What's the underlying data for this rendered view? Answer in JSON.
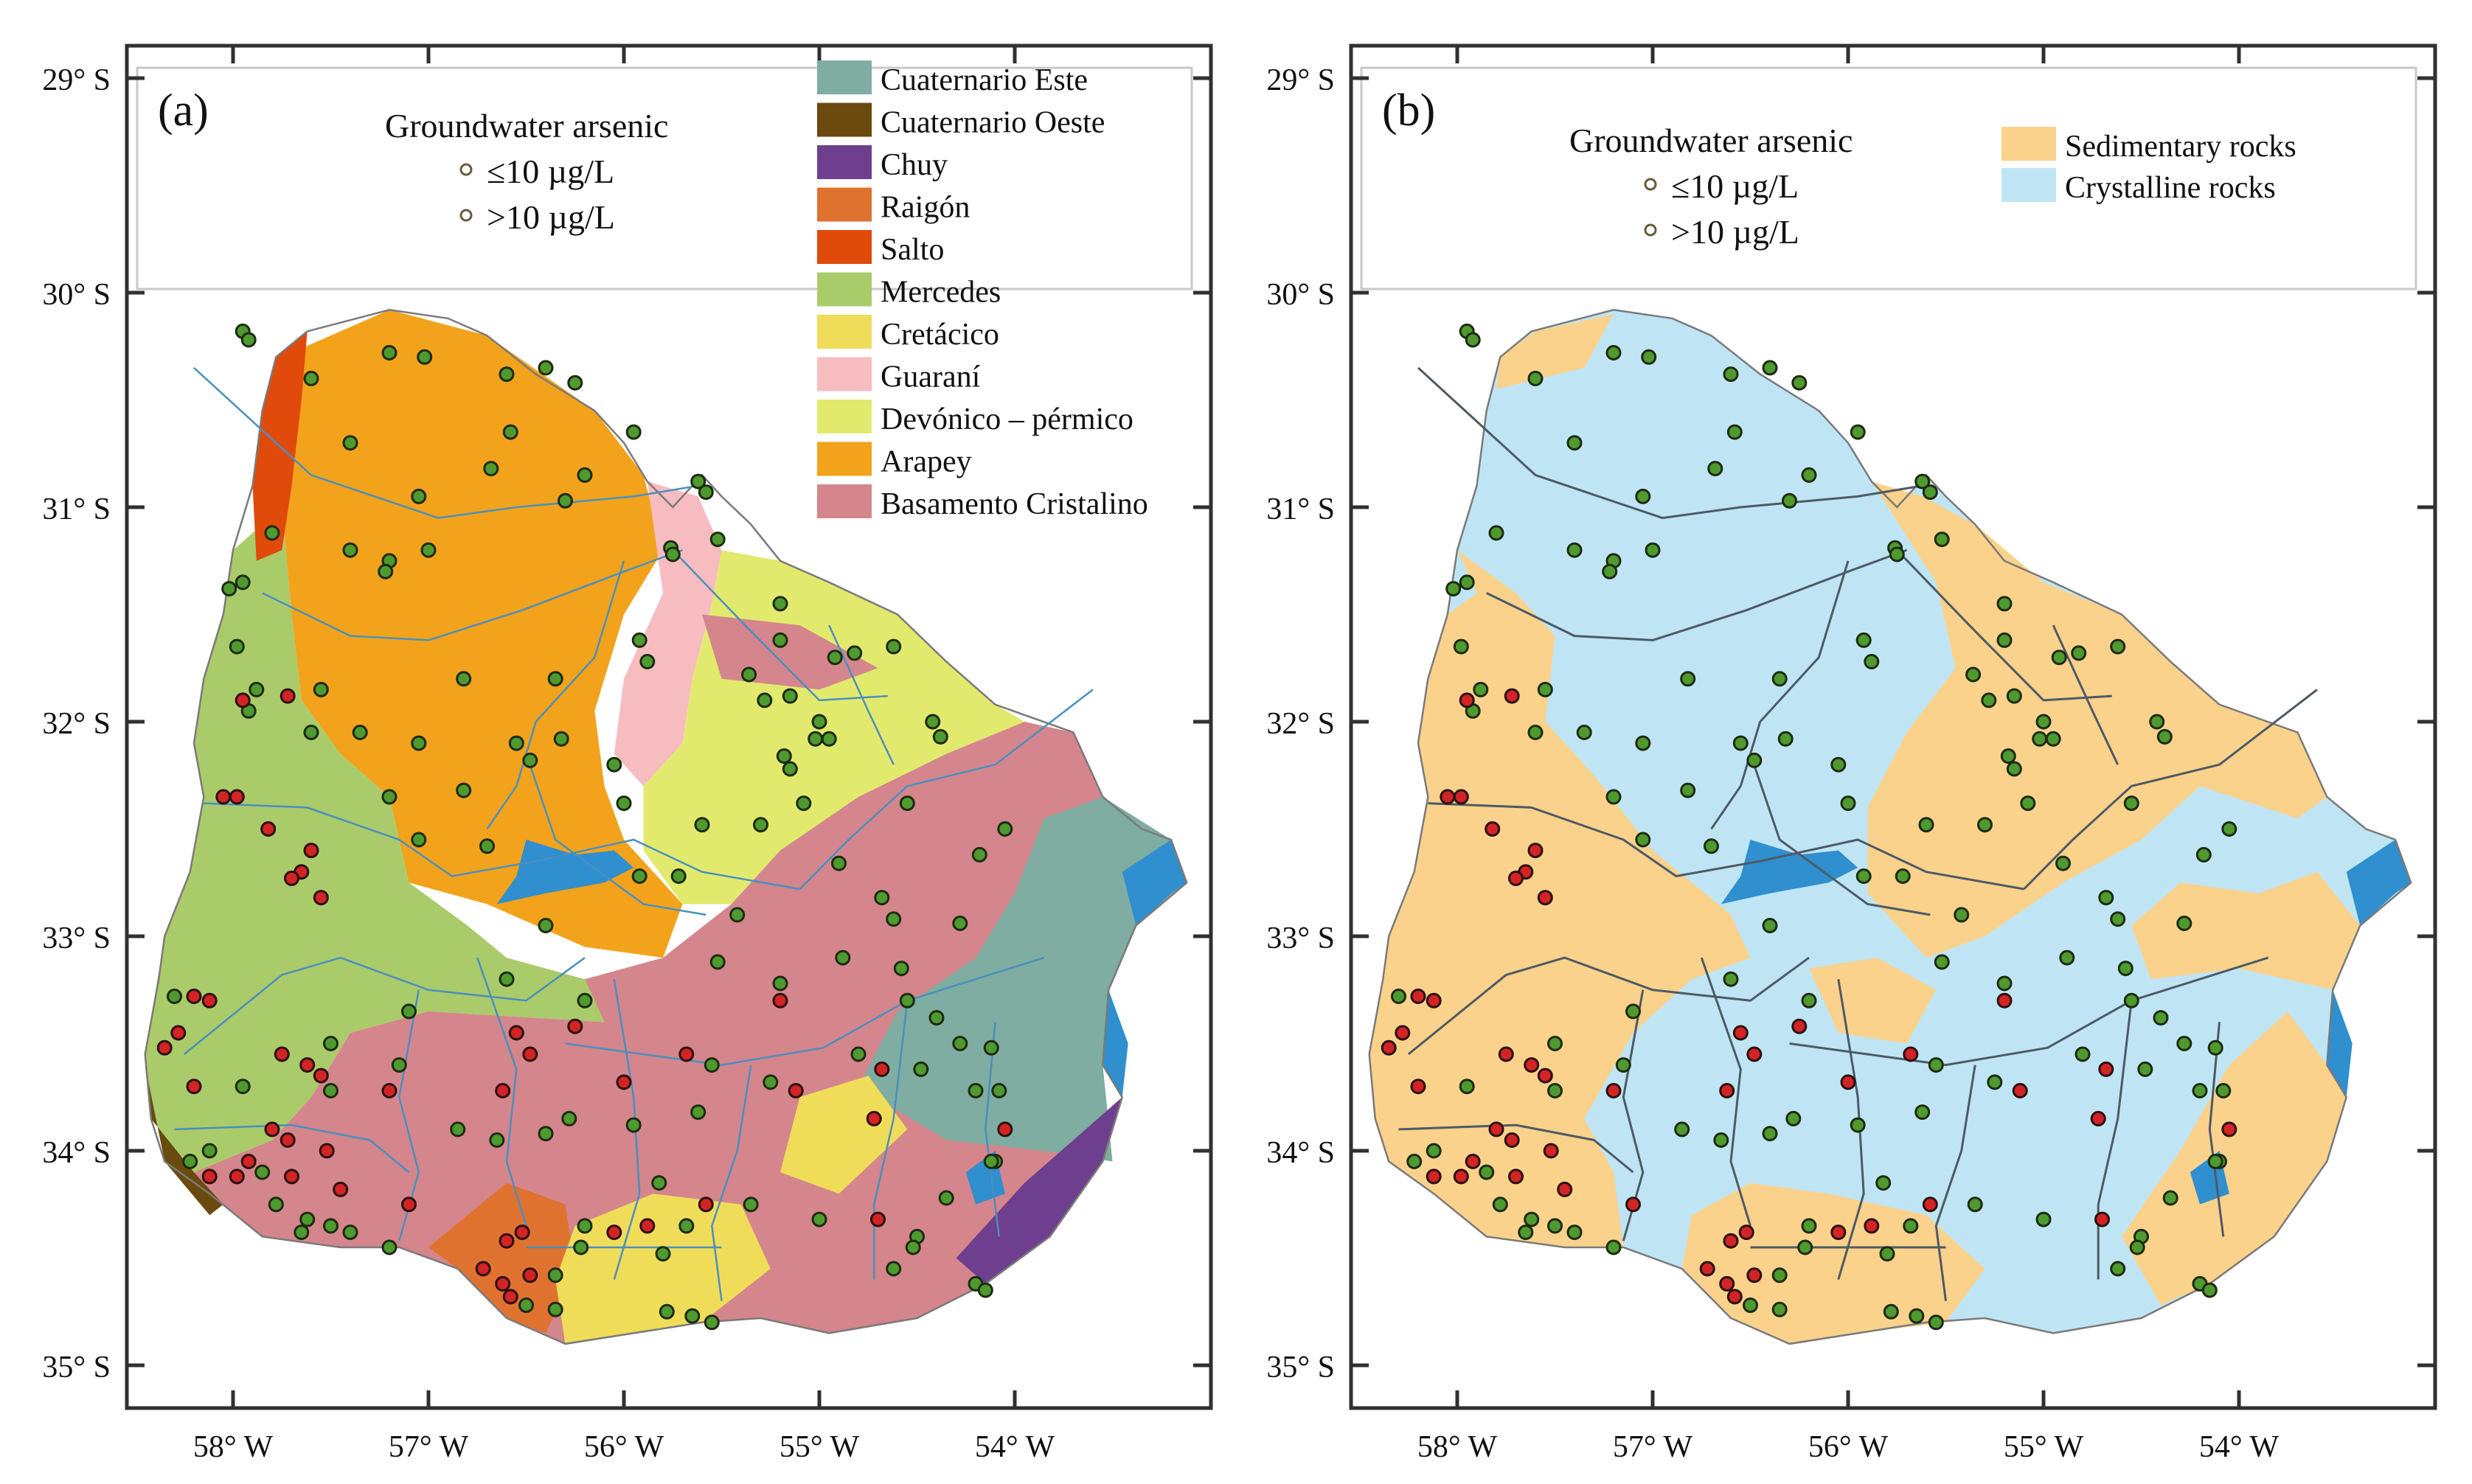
{
  "colors": {
    "cuaternario_este": "#7fada1",
    "cuaternario_oeste": "#6b4a10",
    "chuy": "#6e3f8e",
    "raigon": "#e07230",
    "salto": "#e04a0a",
    "mercedes": "#aacb6a",
    "cretacico": "#efdd5a",
    "guarani": "#f7bcbf",
    "devonico": "#e2ea6e",
    "arapey": "#f2a31b",
    "basamento": "#d4868c",
    "sedimentary": "#fbd28b",
    "crystalline": "#bfe5f5",
    "water": "#2f8fcf",
    "river": "#4a8fbf",
    "point_low": "#4e9a2e",
    "point_high": "#d22424"
  },
  "panel_a": {
    "label": "(a)",
    "title": "Groundwater arsenic",
    "legend_low": "≤10 µg/L",
    "legend_high": ">10 µg/L",
    "units": [
      {
        "name": "Cuaternario Este",
        "color": "#7fada1"
      },
      {
        "name": "Cuaternario Oeste",
        "color": "#6b4a10"
      },
      {
        "name": "Chuy",
        "color": "#6e3f8e"
      },
      {
        "name": "Raigón",
        "color": "#e07230"
      },
      {
        "name": "Salto",
        "color": "#e04a0a"
      },
      {
        "name": "Mercedes",
        "color": "#aacb6a"
      },
      {
        "name": "Cretácico",
        "color": "#efdd5a"
      },
      {
        "name": "Guaraní",
        "color": "#f7bcbf"
      },
      {
        "name": "Devónico – pérmico",
        "color": "#e2ea6e"
      },
      {
        "name": "Arapey",
        "color": "#f2a31b"
      },
      {
        "name": "Basamento Cristalino",
        "color": "#d4868c"
      }
    ]
  },
  "panel_b": {
    "label": "(b)",
    "title": "Groundwater arsenic",
    "legend_low": "≤10 µg/L",
    "legend_high": ">10 µg/L",
    "units": [
      {
        "name": "Sedimentary rocks",
        "color": "#fbd28b"
      },
      {
        "name": "Crystalline rocks",
        "color": "#bfe5f5"
      }
    ]
  },
  "axes": {
    "lat_labels": [
      "29° S",
      "30° S",
      "31° S",
      "32° S",
      "33° S",
      "34° S",
      "35° S"
    ],
    "lon_labels": [
      "58° W",
      "57° W",
      "56° W",
      "55° W",
      "54° W"
    ]
  },
  "points": {
    "low": [
      [
        -57.95,
        -30.18
      ],
      [
        -57.92,
        -30.22
      ],
      [
        -57.6,
        -30.4
      ],
      [
        -57.2,
        -30.28
      ],
      [
        -57.02,
        -30.3
      ],
      [
        -56.6,
        -30.38
      ],
      [
        -56.58,
        -30.65
      ],
      [
        -56.68,
        -30.82
      ],
      [
        -56.4,
        -30.35
      ],
      [
        -56.25,
        -30.42
      ],
      [
        -55.95,
        -30.65
      ],
      [
        -56.2,
        -30.85
      ],
      [
        -56.3,
        -30.97
      ],
      [
        -55.62,
        -30.88
      ],
      [
        -55.58,
        -30.93
      ],
      [
        -57.4,
        -30.7
      ],
      [
        -57.05,
        -30.95
      ],
      [
        -57.0,
        -31.2
      ],
      [
        -57.2,
        -31.25
      ],
      [
        -57.22,
        -31.3
      ],
      [
        -57.4,
        -31.2
      ],
      [
        -57.8,
        -31.12
      ],
      [
        -57.95,
        -31.35
      ],
      [
        -58.02,
        -31.38
      ],
      [
        -57.98,
        -31.65
      ],
      [
        -57.88,
        -31.85
      ],
      [
        -57.92,
        -31.95
      ],
      [
        -57.55,
        -31.85
      ],
      [
        -57.6,
        -32.05
      ],
      [
        -57.35,
        -32.05
      ],
      [
        -57.05,
        -32.1
      ],
      [
        -56.82,
        -31.8
      ],
      [
        -56.35,
        -31.8
      ],
      [
        -56.32,
        -32.08
      ],
      [
        -56.55,
        -32.1
      ],
      [
        -56.48,
        -32.18
      ],
      [
        -56.05,
        -32.2
      ],
      [
        -56.0,
        -32.38
      ],
      [
        -55.92,
        -31.62
      ],
      [
        -55.88,
        -31.72
      ],
      [
        -55.76,
        -31.19
      ],
      [
        -55.75,
        -31.22
      ],
      [
        -55.52,
        -31.15
      ],
      [
        -55.2,
        -31.45
      ],
      [
        -55.2,
        -31.62
      ],
      [
        -55.28,
        -31.9
      ],
      [
        -55.36,
        -31.78
      ],
      [
        -55.15,
        -31.88
      ],
      [
        -54.92,
        -31.7
      ],
      [
        -54.82,
        -31.68
      ],
      [
        -54.62,
        -31.65
      ],
      [
        -55.0,
        -32.0
      ],
      [
        -55.02,
        -32.08
      ],
      [
        -55.18,
        -32.16
      ],
      [
        -55.15,
        -32.22
      ],
      [
        -54.95,
        -32.08
      ],
      [
        -54.42,
        -32.0
      ],
      [
        -54.38,
        -32.07
      ],
      [
        -54.55,
        -32.38
      ],
      [
        -55.08,
        -32.38
      ],
      [
        -55.3,
        -32.48
      ],
      [
        -55.6,
        -32.48
      ],
      [
        -55.72,
        -32.72
      ],
      [
        -55.92,
        -32.72
      ],
      [
        -55.42,
        -32.9
      ],
      [
        -54.68,
        -32.82
      ],
      [
        -54.62,
        -32.92
      ],
      [
        -54.28,
        -32.94
      ],
      [
        -54.9,
        -32.66
      ],
      [
        -54.18,
        -32.62
      ],
      [
        -54.05,
        -32.5
      ],
      [
        -57.2,
        -32.35
      ],
      [
        -56.82,
        -32.32
      ],
      [
        -56.7,
        -32.58
      ],
      [
        -57.05,
        -32.55
      ],
      [
        -56.4,
        -32.95
      ],
      [
        -55.52,
        -33.12
      ],
      [
        -55.2,
        -33.22
      ],
      [
        -54.88,
        -33.1
      ],
      [
        -54.58,
        -33.15
      ],
      [
        -54.55,
        -33.3
      ],
      [
        -54.4,
        -33.38
      ],
      [
        -54.28,
        -33.5
      ],
      [
        -54.12,
        -33.52
      ],
      [
        -54.8,
        -33.55
      ],
      [
        -55.25,
        -33.68
      ],
      [
        -55.55,
        -33.6
      ],
      [
        -56.2,
        -33.3
      ],
      [
        -56.6,
        -33.2
      ],
      [
        -57.1,
        -33.35
      ],
      [
        -57.5,
        -33.72
      ],
      [
        -57.15,
        -33.6
      ],
      [
        -56.85,
        -33.9
      ],
      [
        -56.65,
        -33.95
      ],
      [
        -56.4,
        -33.92
      ],
      [
        -56.28,
        -33.85
      ],
      [
        -55.95,
        -33.88
      ],
      [
        -55.62,
        -33.82
      ],
      [
        -55.82,
        -34.15
      ],
      [
        -54.48,
        -33.62
      ],
      [
        -54.2,
        -33.72
      ],
      [
        -54.08,
        -33.72
      ],
      [
        -54.1,
        -34.05
      ],
      [
        -54.12,
        -34.05
      ],
      [
        -54.35,
        -34.22
      ],
      [
        -54.5,
        -34.4
      ],
      [
        -54.52,
        -34.45
      ],
      [
        -54.62,
        -34.55
      ],
      [
        -54.2,
        -34.62
      ],
      [
        -54.15,
        -34.65
      ],
      [
        -55.0,
        -34.32
      ],
      [
        -55.35,
        -34.25
      ],
      [
        -55.68,
        -34.35
      ],
      [
        -55.8,
        -34.48
      ],
      [
        -56.2,
        -34.35
      ],
      [
        -56.22,
        -34.45
      ],
      [
        -56.35,
        -34.58
      ],
      [
        -55.78,
        -34.75
      ],
      [
        -55.65,
        -34.77
      ],
      [
        -55.55,
        -34.8
      ],
      [
        -56.5,
        -34.72
      ],
      [
        -56.35,
        -34.74
      ],
      [
        -57.2,
        -34.45
      ],
      [
        -57.4,
        -34.38
      ],
      [
        -57.5,
        -34.35
      ],
      [
        -57.62,
        -34.32
      ],
      [
        -57.78,
        -34.25
      ],
      [
        -57.65,
        -34.38
      ],
      [
        -57.85,
        -34.1
      ],
      [
        -58.12,
        -34.0
      ],
      [
        -58.22,
        -34.05
      ],
      [
        -57.95,
        -33.7
      ],
      [
        -57.5,
        -33.5
      ],
      [
        -58.3,
        -33.28
      ]
    ],
    "high": [
      [
        -58.05,
        -32.35
      ],
      [
        -57.98,
        -32.35
      ],
      [
        -57.65,
        -32.7
      ],
      [
        -57.7,
        -32.73
      ],
      [
        -57.55,
        -32.82
      ],
      [
        -57.82,
        -32.5
      ],
      [
        -57.6,
        -32.6
      ],
      [
        -58.2,
        -33.28
      ],
      [
        -58.12,
        -33.3
      ],
      [
        -58.28,
        -33.45
      ],
      [
        -58.35,
        -33.52
      ],
      [
        -57.75,
        -33.55
      ],
      [
        -57.62,
        -33.6
      ],
      [
        -57.55,
        -33.65
      ],
      [
        -57.2,
        -33.72
      ],
      [
        -56.55,
        -33.45
      ],
      [
        -56.48,
        -33.55
      ],
      [
        -56.62,
        -33.72
      ],
      [
        -56.25,
        -33.42
      ],
      [
        -56.0,
        -33.68
      ],
      [
        -55.2,
        -33.3
      ],
      [
        -55.68,
        -33.55
      ],
      [
        -58.2,
        -33.7
      ],
      [
        -58.12,
        -34.12
      ],
      [
        -57.98,
        -34.12
      ],
      [
        -57.92,
        -34.05
      ],
      [
        -57.7,
        -34.12
      ],
      [
        -57.45,
        -34.18
      ],
      [
        -57.1,
        -34.25
      ],
      [
        -56.52,
        -34.38
      ],
      [
        -56.6,
        -34.42
      ],
      [
        -56.72,
        -34.55
      ],
      [
        -56.62,
        -34.62
      ],
      [
        -56.58,
        -34.68
      ],
      [
        -56.48,
        -34.58
      ],
      [
        -56.05,
        -34.38
      ],
      [
        -55.88,
        -34.35
      ],
      [
        -55.58,
        -34.25
      ],
      [
        -57.8,
        -33.9
      ],
      [
        -57.72,
        -33.95
      ],
      [
        -57.52,
        -34.0
      ],
      [
        -57.95,
        -31.9
      ],
      [
        -57.72,
        -31.88
      ],
      [
        -55.12,
        -33.72
      ],
      [
        -54.68,
        -33.62
      ],
      [
        -54.72,
        -33.85
      ],
      [
        -54.05,
        -33.9
      ],
      [
        -54.7,
        -34.32
      ]
    ]
  },
  "rivers": [
    [
      [
        -58.2,
        -30.35
      ],
      [
        -57.6,
        -30.85
      ],
      [
        -56.95,
        -31.05
      ],
      [
        -56.55,
        -31.0
      ],
      [
        -55.95,
        -30.95
      ],
      [
        -55.62,
        -30.9
      ]
    ],
    [
      [
        -57.85,
        -31.4
      ],
      [
        -57.4,
        -31.6
      ],
      [
        -57.0,
        -31.62
      ],
      [
        -56.52,
        -31.48
      ],
      [
        -56.0,
        -31.3
      ],
      [
        -55.7,
        -31.2
      ]
    ],
    [
      [
        -56.0,
        -31.25
      ],
      [
        -56.15,
        -31.7
      ],
      [
        -56.45,
        -32.0
      ],
      [
        -56.55,
        -32.3
      ],
      [
        -56.7,
        -32.5
      ]
    ],
    [
      [
        -58.15,
        -32.38
      ],
      [
        -57.62,
        -32.4
      ],
      [
        -57.15,
        -32.55
      ],
      [
        -56.88,
        -32.72
      ],
      [
        -56.45,
        -32.65
      ],
      [
        -55.95,
        -32.55
      ],
      [
        -55.6,
        -32.7
      ],
      [
        -55.1,
        -32.78
      ]
    ],
    [
      [
        -55.1,
        -32.78
      ],
      [
        -54.85,
        -32.55
      ],
      [
        -54.55,
        -32.3
      ],
      [
        -54.1,
        -32.2
      ],
      [
        -53.6,
        -31.85
      ]
    ],
    [
      [
        -55.75,
        -31.2
      ],
      [
        -55.38,
        -31.55
      ],
      [
        -55.0,
        -31.9
      ],
      [
        -54.65,
        -31.88
      ]
    ],
    [
      [
        -54.62,
        -32.2
      ],
      [
        -54.75,
        -31.95
      ],
      [
        -54.95,
        -31.55
      ]
    ],
    [
      [
        -58.25,
        -33.55
      ],
      [
        -57.75,
        -33.18
      ],
      [
        -57.45,
        -33.1
      ],
      [
        -57.0,
        -33.25
      ],
      [
        -56.5,
        -33.3
      ],
      [
        -56.2,
        -33.1
      ]
    ],
    [
      [
        -57.05,
        -33.25
      ],
      [
        -57.15,
        -33.75
      ],
      [
        -57.05,
        -34.1
      ],
      [
        -57.15,
        -34.42
      ]
    ],
    [
      [
        -56.75,
        -33.1
      ],
      [
        -56.55,
        -33.62
      ],
      [
        -56.6,
        -34.05
      ],
      [
        -56.5,
        -34.35
      ]
    ],
    [
      [
        -56.05,
        -33.2
      ],
      [
        -55.95,
        -33.75
      ],
      [
        -55.92,
        -34.2
      ],
      [
        -56.05,
        -34.6
      ]
    ],
    [
      [
        -56.3,
        -33.5
      ],
      [
        -55.5,
        -33.6
      ],
      [
        -54.98,
        -33.52
      ],
      [
        -54.55,
        -33.3
      ],
      [
        -53.85,
        -33.1
      ]
    ],
    [
      [
        -55.35,
        -33.6
      ],
      [
        -55.42,
        -34.0
      ],
      [
        -55.55,
        -34.35
      ],
      [
        -55.5,
        -34.7
      ]
    ],
    [
      [
        -54.55,
        -33.3
      ],
      [
        -54.62,
        -33.85
      ],
      [
        -54.72,
        -34.25
      ],
      [
        -54.72,
        -34.6
      ]
    ],
    [
      [
        -54.1,
        -33.4
      ],
      [
        -54.15,
        -33.9
      ],
      [
        -54.08,
        -34.4
      ]
    ],
    [
      [
        -56.5,
        -34.45
      ],
      [
        -55.95,
        -34.45
      ],
      [
        -55.5,
        -34.45
      ]
    ],
    [
      [
        -58.3,
        -33.9
      ],
      [
        -57.7,
        -33.88
      ],
      [
        -57.3,
        -33.95
      ],
      [
        -57.1,
        -34.1
      ]
    ],
    [
      [
        -56.5,
        -32.15
      ],
      [
        -56.35,
        -32.55
      ],
      [
        -55.9,
        -32.85
      ],
      [
        -55.58,
        -32.9
      ]
    ]
  ]
}
